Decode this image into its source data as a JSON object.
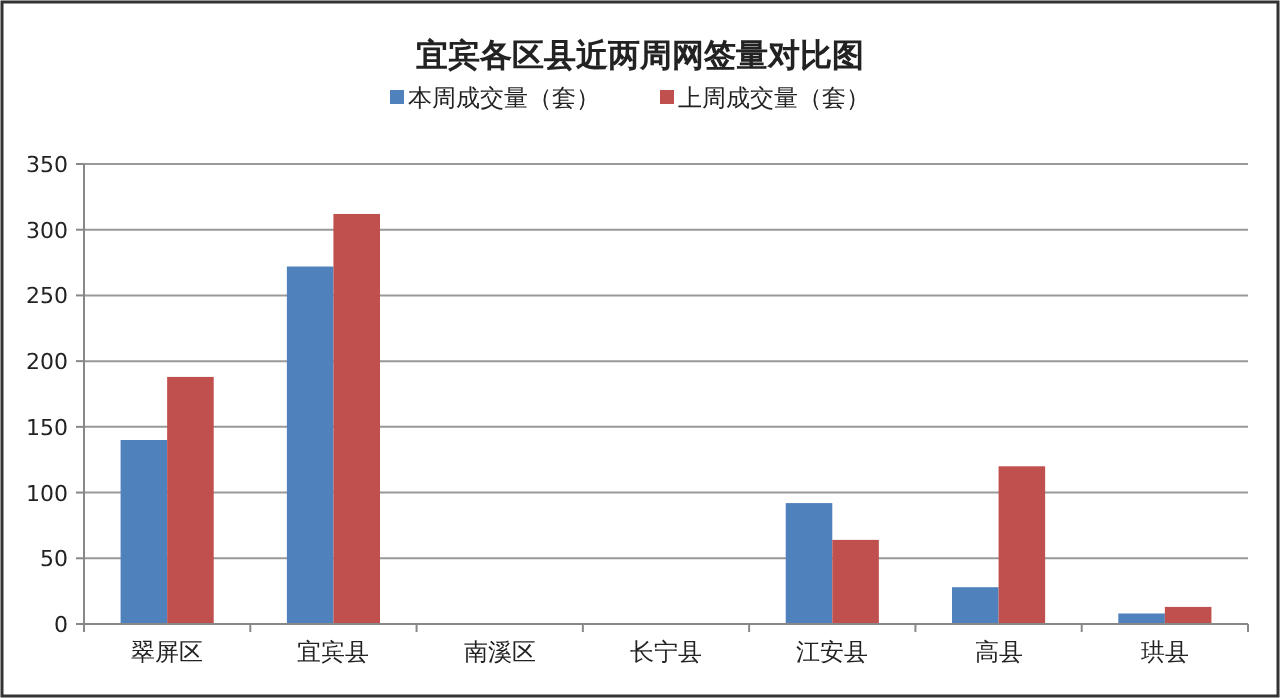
{
  "chart_data": {
    "type": "bar",
    "title": "宜宾各区县近两周网签量对比图",
    "categories": [
      "翠屏区",
      "宜宾县",
      "南溪区",
      "长宁县",
      "江安县",
      "高县",
      "珙县"
    ],
    "series": [
      {
        "name": "本周成交量（套）",
        "color": "#4f81bd",
        "values": [
          140,
          272,
          0,
          0,
          92,
          28,
          8
        ]
      },
      {
        "name": "上周成交量（套）",
        "color": "#c0504d",
        "values": [
          188,
          312,
          0,
          0,
          64,
          120,
          13
        ]
      }
    ],
    "ylim": [
      0,
      350
    ],
    "yticks": [
      0,
      50,
      100,
      150,
      200,
      250,
      300,
      350
    ],
    "grid": "y",
    "legend": "top"
  }
}
